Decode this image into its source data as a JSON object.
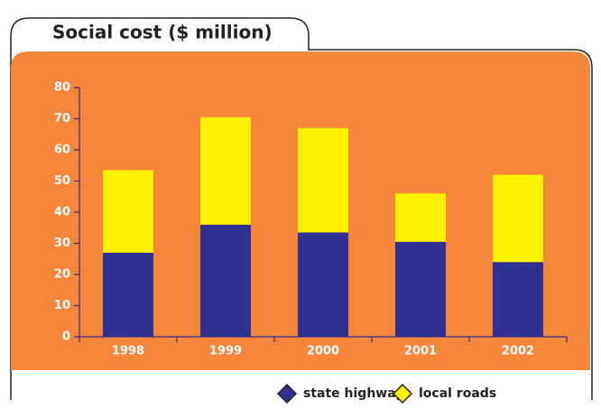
{
  "chart_data": {
    "type": "stacked_bar",
    "title": "Social cost ($ million)",
    "categories": [
      "1998",
      "1999",
      "2000",
      "2001",
      "2002"
    ],
    "series": [
      {
        "name": "state highways",
        "color": "#2e3192",
        "values": [
          27,
          36,
          33.5,
          30.5,
          24
        ]
      },
      {
        "name": "local roads",
        "color": "#fff200",
        "values": [
          26.5,
          34.5,
          33.5,
          15.5,
          28
        ]
      }
    ],
    "ylim": [
      0,
      80
    ],
    "yticks": [
      0,
      10,
      20,
      30,
      40,
      50,
      60,
      70,
      80
    ],
    "grid": false,
    "legend": "bottom-right"
  }
}
